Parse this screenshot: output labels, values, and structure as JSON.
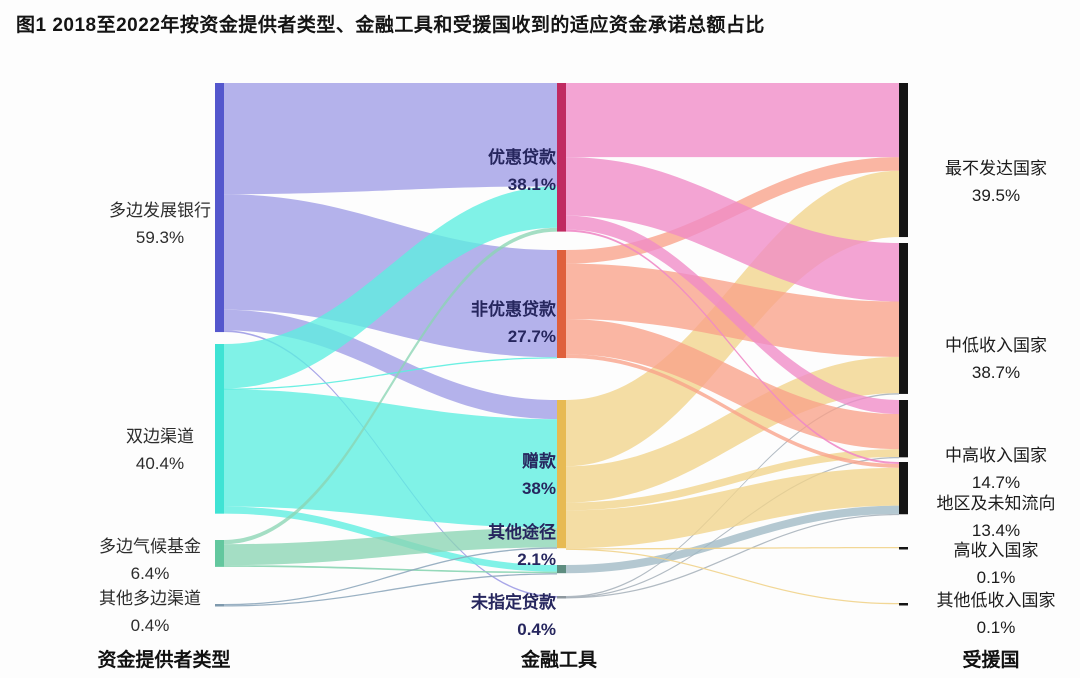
{
  "figure": {
    "title": "图1  2018至2022年按资金提供者类型、金融工具和受援国收到的适应资金承诺总额占比"
  },
  "chart_data": {
    "type": "sankey",
    "unit": "percent_of_total_adaptation_finance_commitments",
    "title": "2018至2022年按资金提供者类型、金融工具和受援国收到的适应资金承诺总额占比",
    "column_titles": [
      "资金提供者类型",
      "金融工具",
      "受援国"
    ],
    "label_colors": {
      "left": "#2d2d2d",
      "middle": "#26265e",
      "right": "#1c1c1c"
    },
    "background": "#fdfdfd",
    "right_bar_color": "#151515",
    "nodes": [
      {
        "id": "mdb",
        "column": "provider",
        "label": "多边发展银行",
        "pct_label": "59.3%",
        "value": 59.3,
        "bar_color": "#5457cd",
        "flow_color": "#9f9ce5"
      },
      {
        "id": "bil",
        "column": "provider",
        "label": "双边渠道",
        "pct_label": "40.4%",
        "value": 40.4,
        "bar_color": "#3fe3d4",
        "flow_color": "#5ceee0"
      },
      {
        "id": "mcf",
        "column": "provider",
        "label": "多边气候基金",
        "pct_label": "6.4%",
        "value": 6.4,
        "bar_color": "#63c79e",
        "flow_color": "#8ad5b3"
      },
      {
        "id": "omc",
        "column": "provider",
        "label": "其他多边渠道",
        "pct_label": "0.4%",
        "value": 0.4,
        "bar_color": "#7e99ad",
        "flow_color": "#8fa9bd"
      },
      {
        "id": "conc",
        "column": "instrument",
        "label": "优惠贷款",
        "pct_label": "38.1%",
        "value": 38.1,
        "bar_color": "#c02a61",
        "flow_color": "#ef8ac7"
      },
      {
        "id": "nonconc",
        "column": "instrument",
        "label": "非优惠贷款",
        "pct_label": "27.7%",
        "value": 27.7,
        "bar_color": "#df603c",
        "flow_color": "#f8a189"
      },
      {
        "id": "grant",
        "column": "instrument",
        "label": "赠款",
        "pct_label": "38%",
        "value": 38.0,
        "bar_color": "#e7ba52",
        "flow_color": "#f1d38b"
      },
      {
        "id": "other",
        "column": "instrument",
        "label": "其他途径",
        "pct_label": "2.1%",
        "value": 2.1,
        "bar_color": "#5e8d80",
        "flow_color": "#9fb9c4"
      },
      {
        "id": "unspec",
        "column": "instrument",
        "label": "未指定贷款",
        "pct_label": "0.4%",
        "value": 0.4,
        "bar_color": "#8d979e",
        "flow_color": "#aab4bd"
      },
      {
        "id": "ldc",
        "column": "recipient",
        "label": "最不发达国家",
        "pct_label": "39.5%",
        "value": 39.5,
        "bar_color": "#151515",
        "flow_color": null
      },
      {
        "id": "lmic",
        "column": "recipient",
        "label": "中低收入国家",
        "pct_label": "38.7%",
        "value": 38.7,
        "bar_color": "#151515",
        "flow_color": null
      },
      {
        "id": "umic",
        "column": "recipient",
        "label": "中高收入国家",
        "pct_label": "14.7%",
        "value": 14.7,
        "bar_color": "#151515",
        "flow_color": null
      },
      {
        "id": "reg",
        "column": "recipient",
        "label": "地区及未知流向",
        "pct_label": "13.4%",
        "value": 13.4,
        "bar_color": "#151515",
        "flow_color": null
      },
      {
        "id": "hic",
        "column": "recipient",
        "label": "高收入国家",
        "pct_label": "0.1%",
        "value": 0.1,
        "bar_color": "#151515",
        "flow_color": null
      },
      {
        "id": "olic",
        "column": "recipient",
        "label": "其他低收入国家",
        "pct_label": "0.1%",
        "value": 0.1,
        "bar_color": "#151515",
        "flow_color": null
      }
    ],
    "links_note": "Individual link values are not printed in the figure; they are estimated from ribbon widths so that they sum to the labeled node percentages.",
    "links": [
      {
        "source": "mdb",
        "target": "conc",
        "value": 26.5
      },
      {
        "source": "mdb",
        "target": "nonconc",
        "value": 27.5
      },
      {
        "source": "mdb",
        "target": "grant",
        "value": 4.9
      },
      {
        "source": "mdb",
        "target": "unspec",
        "value": 0.4
      },
      {
        "source": "bil",
        "target": "conc",
        "value": 10.6
      },
      {
        "source": "bil",
        "target": "nonconc",
        "value": 0.2
      },
      {
        "source": "bil",
        "target": "grant",
        "value": 27.9
      },
      {
        "source": "bil",
        "target": "other",
        "value": 1.7
      },
      {
        "source": "mcf",
        "target": "conc",
        "value": 1.0
      },
      {
        "source": "mcf",
        "target": "grant",
        "value": 5.0
      },
      {
        "source": "mcf",
        "target": "other",
        "value": 0.4
      },
      {
        "source": "omc",
        "target": "grant",
        "value": 0.3
      },
      {
        "source": "omc",
        "target": "other",
        "value": 0.1
      },
      {
        "source": "conc",
        "target": "ldc",
        "value": 19.0
      },
      {
        "source": "conc",
        "target": "lmic",
        "value": 15.0
      },
      {
        "source": "conc",
        "target": "umic",
        "value": 3.6
      },
      {
        "source": "conc",
        "target": "reg",
        "value": 0.5
      },
      {
        "source": "nonconc",
        "target": "ldc",
        "value": 3.5
      },
      {
        "source": "nonconc",
        "target": "lmic",
        "value": 14.2
      },
      {
        "source": "nonconc",
        "target": "umic",
        "value": 9.0
      },
      {
        "source": "nonconc",
        "target": "reg",
        "value": 1.0
      },
      {
        "source": "grant",
        "target": "ldc",
        "value": 17.0
      },
      {
        "source": "grant",
        "target": "lmic",
        "value": 9.3
      },
      {
        "source": "grant",
        "target": "umic",
        "value": 2.0
      },
      {
        "source": "grant",
        "target": "reg",
        "value": 9.7
      },
      {
        "source": "grant",
        "target": "hic",
        "value": 0.1
      },
      {
        "source": "grant",
        "target": "olic",
        "value": 0.1
      },
      {
        "source": "other",
        "target": "reg",
        "value": 2.1
      },
      {
        "source": "unspec",
        "target": "lmic",
        "value": 0.2
      },
      {
        "source": "unspec",
        "target": "umic",
        "value": 0.1
      },
      {
        "source": "unspec",
        "target": "reg",
        "value": 0.1
      }
    ]
  }
}
